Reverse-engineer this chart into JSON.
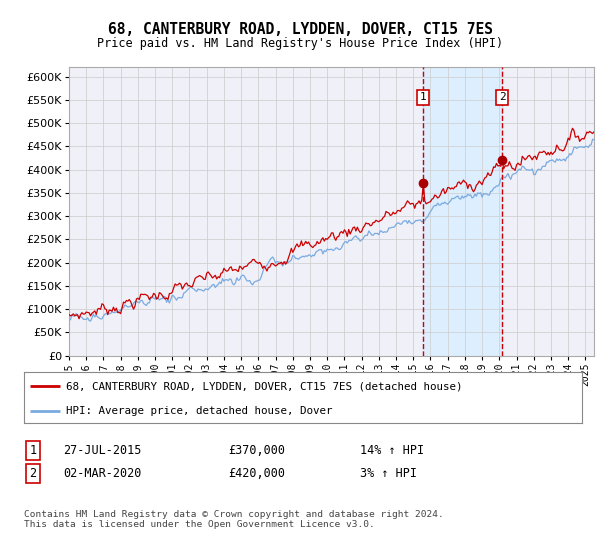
{
  "title": "68, CANTERBURY ROAD, LYDDEN, DOVER, CT15 7ES",
  "subtitle": "Price paid vs. HM Land Registry's House Price Index (HPI)",
  "ylim": [
    0,
    620000
  ],
  "xlim_start": 1995.0,
  "xlim_end": 2025.5,
  "transaction1_x": 2015.57,
  "transaction1_y": 370000,
  "transaction1_label": "1",
  "transaction1_date": "27-JUL-2015",
  "transaction1_price": "£370,000",
  "transaction1_hpi": "14% ↑ HPI",
  "transaction2_x": 2020.17,
  "transaction2_y": 420000,
  "transaction2_label": "2",
  "transaction2_date": "02-MAR-2020",
  "transaction2_price": "£420,000",
  "transaction2_hpi": "3% ↑ HPI",
  "line1_color": "#cc0000",
  "line2_color": "#7aabe0",
  "dot_color": "#aa0000",
  "shaded_color": "#ddeeff",
  "legend1_label": "68, CANTERBURY ROAD, LYDDEN, DOVER, CT15 7ES (detached house)",
  "legend2_label": "HPI: Average price, detached house, Dover",
  "footer": "Contains HM Land Registry data © Crown copyright and database right 2024.\nThis data is licensed under the Open Government Licence v3.0.",
  "background_color": "#f0f0f8"
}
